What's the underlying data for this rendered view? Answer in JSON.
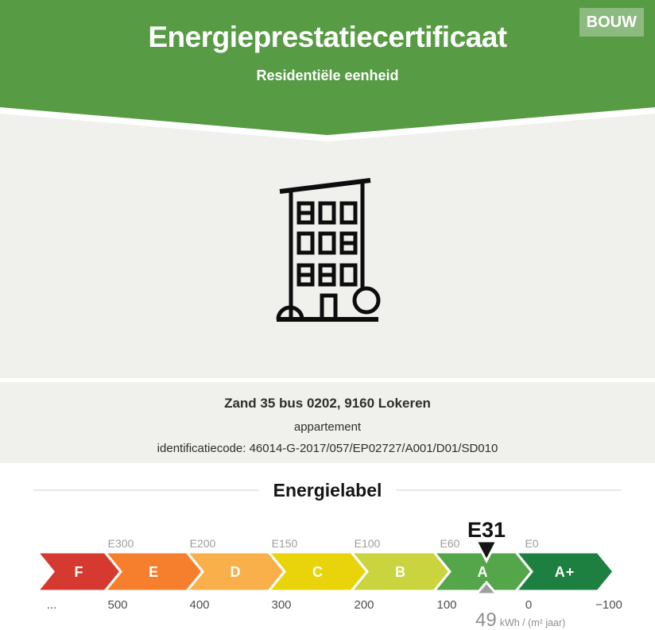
{
  "header": {
    "title": "Energieprestatiecertificaat",
    "subtitle": "Residentiële eenheid",
    "badge": "BOUW"
  },
  "property": {
    "address": "Zand 35 bus 0202, 9160 Lokeren",
    "building_type": "appartement",
    "identification": "identificatiecode: 46014-G-2017/057/EP02727/A001/D01/SD010"
  },
  "icons": {
    "building": "apartment-building-icon"
  },
  "colors": {
    "header_green": "#579b44",
    "badge_green": "#8dba7e",
    "section_gray": "#f0f1ed"
  },
  "chart_data": {
    "type": "bar",
    "title": "Energielabel",
    "categories": [
      "F",
      "E",
      "D",
      "C",
      "B",
      "A",
      "A+"
    ],
    "colors": [
      "#d6392f",
      "#f57f2d",
      "#f9b04a",
      "#e9d40c",
      "#c9d43e",
      "#55a54a",
      "#1e8040"
    ],
    "upper_boundary_labels": [
      "E300",
      "E200",
      "E150",
      "E100",
      "E60",
      "E0"
    ],
    "lower_axis_labels": [
      "...",
      "500",
      "400",
      "300",
      "200",
      "100",
      "0",
      "−100"
    ],
    "marker": {
      "label": "E31",
      "value": "49",
      "unit": "kWh / (m² jaar)",
      "segment": "A"
    },
    "legend_position": "none",
    "grid": false
  }
}
